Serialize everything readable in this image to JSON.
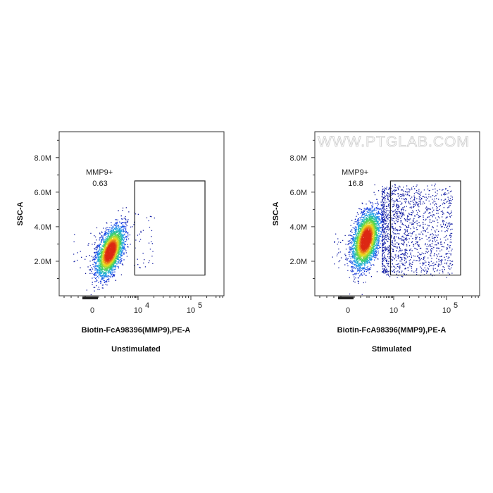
{
  "chart_data": [
    {
      "type": "scatter",
      "subtitle": "Unstimulated",
      "xlabel": "Biotin-FcA98396(MMP9),PE-A",
      "ylabel": "SSC-A",
      "x_scale": "biexponential",
      "x_ticks": [
        "0",
        "10",
        "10"
      ],
      "x_tick_exponents": [
        "",
        "4",
        "5"
      ],
      "x_tick_values": [
        0,
        10000,
        100000
      ],
      "y_ticks": [
        "8.0M",
        "6.0M",
        "4.0M",
        "2.0M"
      ],
      "y_tick_values": [
        8000000,
        6000000,
        4000000,
        2000000
      ],
      "ylim": [
        0,
        9500000
      ],
      "gate": {
        "name": "MMP9+",
        "percent": "0.63",
        "x_range": [
          7400,
          185000
        ],
        "y_range": [
          1200000,
          6650000
        ]
      },
      "watermark": ""
    },
    {
      "type": "scatter",
      "subtitle": "Stimulated",
      "xlabel": "Biotin-FcA98396(MMP9),PE-A",
      "ylabel": "SSC-A",
      "x_scale": "biexponential",
      "x_ticks": [
        "0",
        "10",
        "10"
      ],
      "x_tick_exponents": [
        "",
        "4",
        "5"
      ],
      "x_tick_values": [
        0,
        10000,
        100000
      ],
      "y_ticks": [
        "8.0M",
        "6.0M",
        "4.0M",
        "2.0M"
      ],
      "y_tick_values": [
        8000000,
        6000000,
        4000000,
        2000000
      ],
      "ylim": [
        0,
        9500000
      ],
      "gate": {
        "name": "MMP9+",
        "percent": "16.8",
        "x_range": [
          7400,
          185000
        ],
        "y_range": [
          1200000,
          6650000
        ]
      },
      "watermark": "WWW.PTGLAB.COM"
    }
  ]
}
